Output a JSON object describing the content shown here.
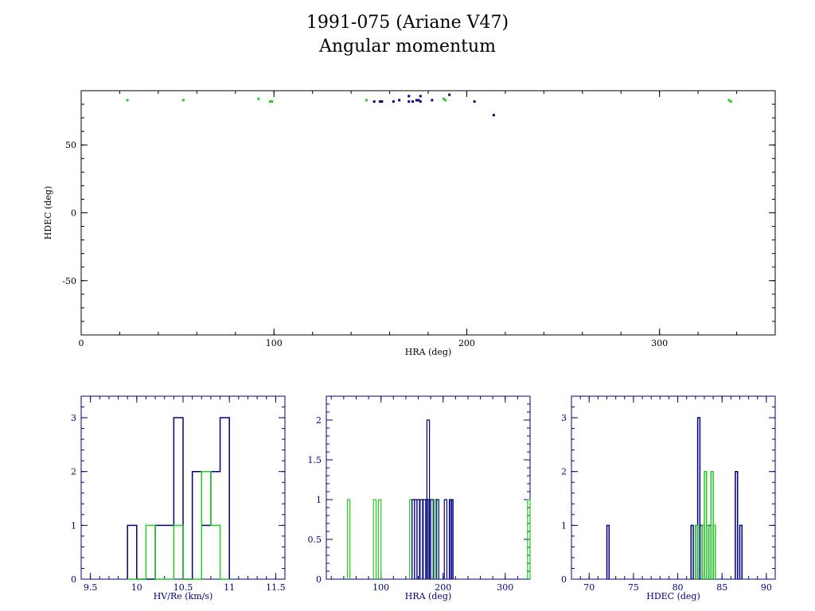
{
  "title": {
    "line1": "1991-075 (Ariane V47)",
    "line2": "Angular momentum"
  },
  "colors": {
    "axis_top": "#000000",
    "axis_bottom": "#000080",
    "series_blue": "#000080",
    "series_green": "#22cc22"
  },
  "chart_data": [
    {
      "type": "scatter",
      "xlabel": "HRA (deg)",
      "ylabel": "HDEC (deg)",
      "xlim": [
        0,
        360
      ],
      "ylim": [
        -90,
        90
      ],
      "x_ticks": [
        0,
        100,
        200,
        300
      ],
      "y_ticks": [
        -50,
        0,
        50
      ],
      "series": [
        {
          "color": "green",
          "points": [
            [
              24,
              83
            ],
            [
              53,
              83
            ],
            [
              92,
              84
            ],
            [
              98,
              82
            ],
            [
              99,
              82
            ],
            [
              148,
              83
            ],
            [
              188,
              84
            ],
            [
              189,
              83
            ],
            [
              336,
              83
            ],
            [
              337,
              82
            ]
          ]
        },
        {
          "color": "blue",
          "points": [
            [
              152,
              82
            ],
            [
              155,
              82
            ],
            [
              156,
              82
            ],
            [
              162,
              82
            ],
            [
              165,
              83
            ],
            [
              170,
              86
            ],
            [
              170,
              82
            ],
            [
              172,
              82
            ],
            [
              174,
              83
            ],
            [
              175,
              83
            ],
            [
              176,
              86
            ],
            [
              176,
              82
            ],
            [
              182,
              83
            ],
            [
              191,
              87
            ],
            [
              204,
              82
            ],
            [
              214,
              72
            ]
          ]
        }
      ]
    },
    {
      "type": "histogram",
      "xlabel": "HV/Re (km/s)",
      "ylabel": "",
      "xlim": [
        9.4,
        11.6
      ],
      "ylim": [
        0,
        3.4
      ],
      "x_ticks": [
        9.5,
        10,
        10.5,
        11,
        11.5
      ],
      "x_tick_labels": [
        "9.5",
        "10",
        "10.5",
        "11",
        "11.5"
      ],
      "y_ticks": [
        0,
        1,
        2,
        3
      ],
      "bin_edges": [
        9.9,
        10.0,
        10.1,
        10.2,
        10.3,
        10.4,
        10.5,
        10.6,
        10.7,
        10.8,
        10.9,
        11.0
      ],
      "series": [
        {
          "color": "blue",
          "counts": [
            1,
            0,
            0,
            1,
            1,
            3,
            0,
            2,
            1,
            2,
            3
          ]
        },
        {
          "color": "green",
          "counts": [
            0,
            0,
            1,
            0,
            0,
            1,
            0,
            0,
            2,
            1,
            0
          ]
        }
      ]
    },
    {
      "type": "histogram",
      "xlabel": "HRA (deg)",
      "ylabel": "",
      "xlim": [
        12,
        340
      ],
      "ylim": [
        0,
        2.3
      ],
      "x_ticks": [
        100,
        200,
        300
      ],
      "y_ticks": [
        0,
        0.5,
        1,
        1.5,
        2
      ],
      "y_tick_labels": [
        "0",
        "0.5",
        "1",
        "1.5",
        "2"
      ],
      "series": [
        {
          "color": "green",
          "bins": [
            [
              48,
              1
            ],
            [
              90,
              1
            ],
            [
              98,
              1
            ],
            [
              148,
              1
            ],
            [
              178,
              1
            ],
            [
              188,
              1
            ],
            [
              338,
              1
            ]
          ]
        },
        {
          "color": "blue",
          "bins": [
            [
              152,
              1
            ],
            [
              156,
              1
            ],
            [
              160,
              1
            ],
            [
              165,
              1
            ],
            [
              170,
              1
            ],
            [
              174,
              1
            ],
            [
              176,
              2
            ],
            [
              182,
              1
            ],
            [
              191,
              1
            ],
            [
              204,
              1
            ],
            [
              212,
              1
            ],
            [
              214,
              1
            ]
          ]
        }
      ]
    },
    {
      "type": "histogram",
      "xlabel": "HDEC (deg)",
      "ylabel": "",
      "xlim": [
        68,
        91
      ],
      "ylim": [
        0,
        3.4
      ],
      "x_ticks": [
        70,
        75,
        80,
        85,
        90
      ],
      "y_ticks": [
        0,
        1,
        2,
        3
      ],
      "bin_edges": [
        72,
        72.25,
        81.5,
        81.75,
        82.0,
        82.25,
        82.5,
        82.75,
        83.0,
        83.25,
        83.5,
        83.75,
        84.0,
        84.25,
        86.5,
        86.75,
        87.0,
        87.25
      ],
      "series": [
        {
          "color": "blue",
          "bins": [
            [
              72.0,
              1
            ],
            [
              81.5,
              1
            ],
            [
              82.0,
              1
            ],
            [
              82.25,
              3
            ],
            [
              82.5,
              1
            ],
            [
              83.5,
              1
            ],
            [
              86.5,
              2
            ],
            [
              86.75,
              0
            ],
            [
              87.0,
              1
            ]
          ]
        },
        {
          "color": "green",
          "bins": [
            [
              82.0,
              1
            ],
            [
              82.75,
              1
            ],
            [
              83.0,
              2
            ],
            [
              83.25,
              1
            ],
            [
              83.75,
              2
            ],
            [
              84.0,
              1
            ]
          ]
        }
      ]
    }
  ]
}
